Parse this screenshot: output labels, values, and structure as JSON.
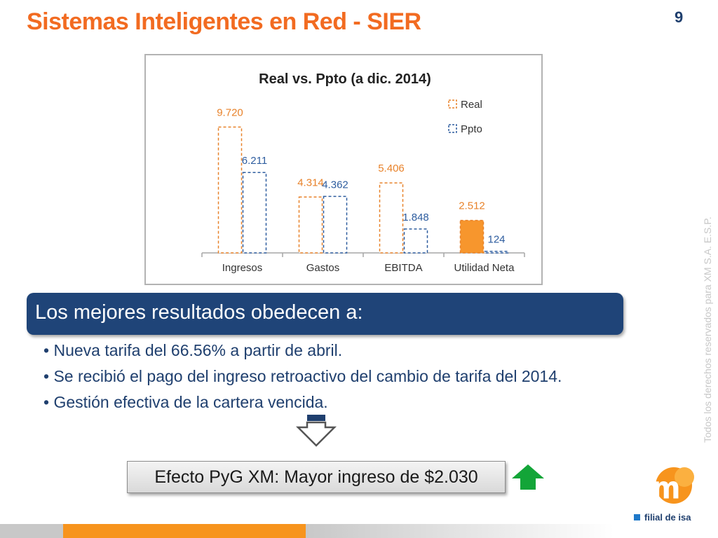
{
  "slide": {
    "title": "Sistemas Inteligentes en Red - SIER",
    "page_number": "9"
  },
  "chart_data": {
    "type": "bar",
    "title": "Real vs. Ppto (a dic. 2014)",
    "categories": [
      "Ingresos",
      "Gastos",
      "EBITDA",
      "Utilidad Neta"
    ],
    "series": [
      {
        "name": "Real",
        "values": [
          9720,
          4314,
          5406,
          2512
        ],
        "labels": [
          "9.720",
          "4.314",
          "5.406",
          "2.512"
        ],
        "color": "#e8822a"
      },
      {
        "name": "Ppto",
        "values": [
          6211,
          4362,
          1848,
          124
        ],
        "labels": [
          "6.211",
          "4.362",
          "1.848",
          "124"
        ],
        "color": "#2e5d9f"
      }
    ],
    "highlight": {
      "series": "Real",
      "category": "Utilidad Neta",
      "color": "#f7962d"
    },
    "ylim": [
      0,
      10500
    ],
    "legend": "top-right",
    "grid": false
  },
  "banner": {
    "text": "Los mejores resultados obedecen a:"
  },
  "bullets": [
    "Nueva tarifa del  66.56% a partir de abril.",
    "Se recibió el pago del ingreso retroactivo del cambio de tarifa del 2014.",
    "Gestión  efectiva de  la cartera vencida."
  ],
  "effect": {
    "text": "Efecto PyG XM: Mayor ingreso de $2.030"
  },
  "side_note": "Todos los derechos reservados para XM S.A. E.S.P.",
  "logo": {
    "text": "xm",
    "subtitle": "filial de isa"
  },
  "icons": {
    "down_arrow": "down-arrow-icon",
    "up_arrow": "up-arrow-icon"
  },
  "colors": {
    "title": "#f26b21",
    "banner": "#1f4478",
    "text": "#1f3f6e",
    "up_arrow": "#13a538"
  }
}
